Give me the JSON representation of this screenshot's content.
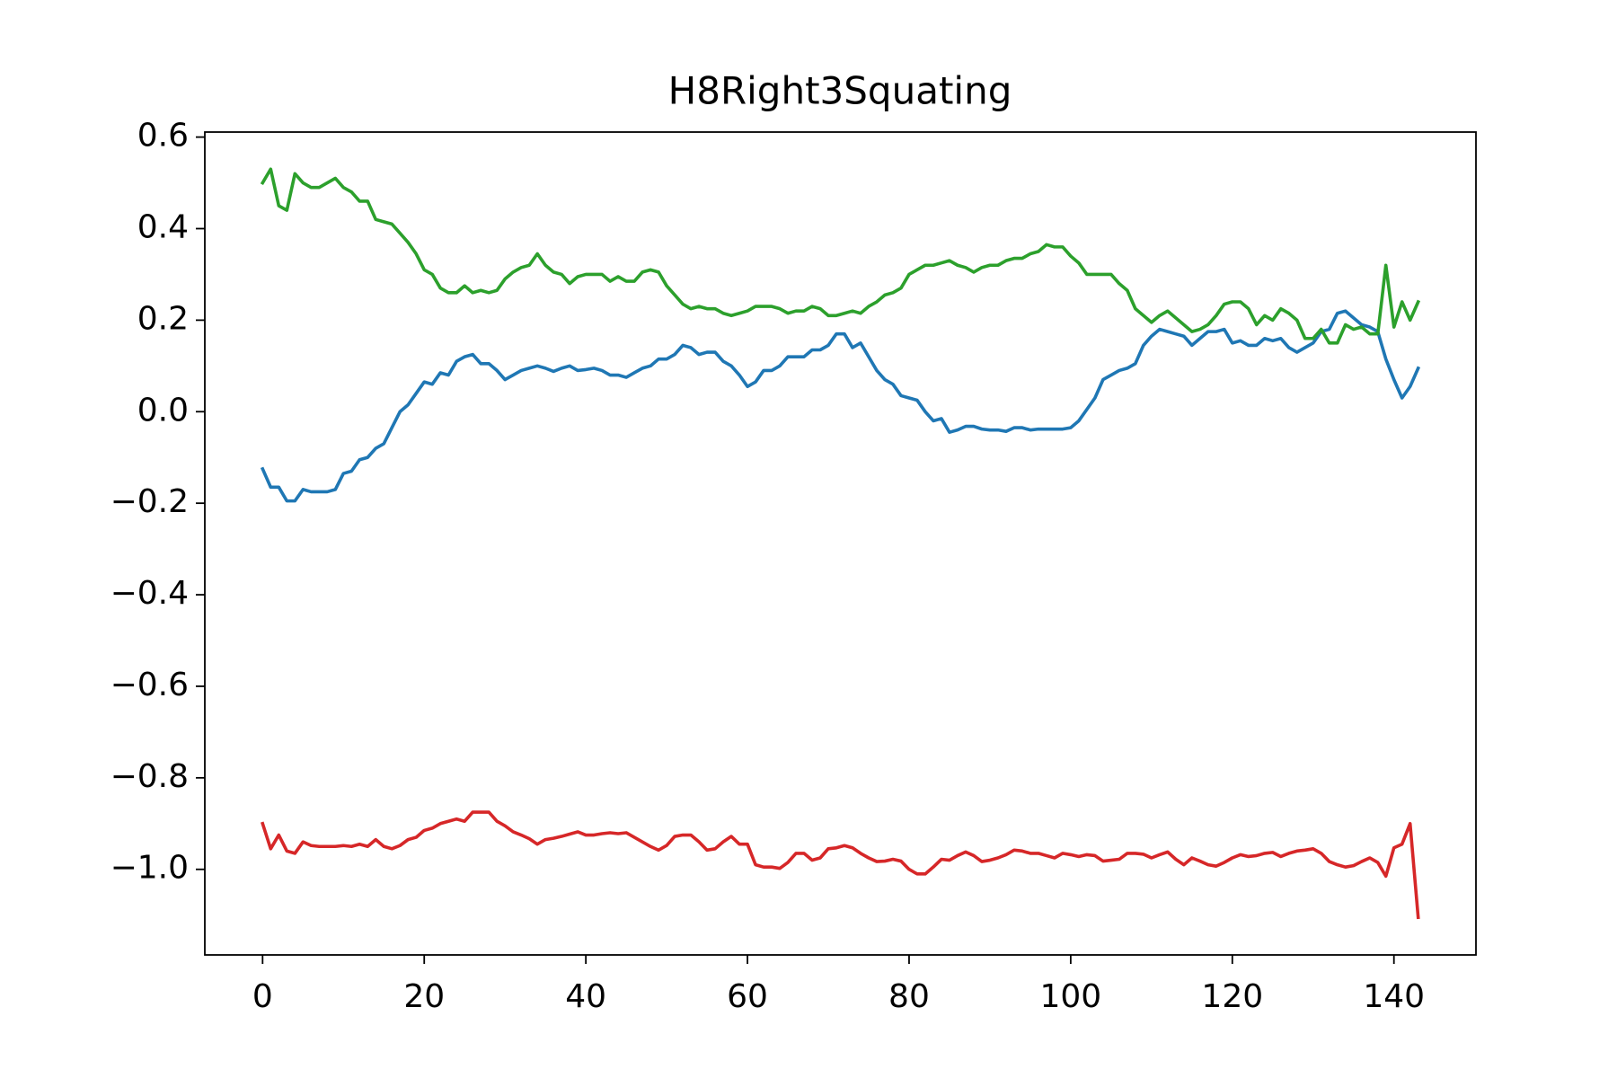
{
  "chart_data": {
    "type": "line",
    "title": "H8Right3Squating",
    "x": [
      0,
      1,
      2,
      3,
      4,
      5,
      6,
      7,
      8,
      9,
      10,
      11,
      12,
      13,
      14,
      15,
      16,
      17,
      18,
      19,
      20,
      21,
      22,
      23,
      24,
      25,
      26,
      27,
      28,
      29,
      30,
      31,
      32,
      33,
      34,
      35,
      36,
      37,
      38,
      39,
      40,
      41,
      42,
      43,
      44,
      45,
      46,
      47,
      48,
      49,
      50,
      51,
      52,
      53,
      54,
      55,
      56,
      57,
      58,
      59,
      60,
      61,
      62,
      63,
      64,
      65,
      66,
      67,
      68,
      69,
      70,
      71,
      72,
      73,
      74,
      75,
      76,
      77,
      78,
      79,
      80,
      81,
      82,
      83,
      84,
      85,
      86,
      87,
      88,
      89,
      90,
      91,
      92,
      93,
      94,
      95,
      96,
      97,
      98,
      99,
      100,
      101,
      102,
      103,
      104,
      105,
      106,
      107,
      108,
      109,
      110,
      111,
      112,
      113,
      114,
      115,
      116,
      117,
      118,
      119,
      120,
      121,
      122,
      123,
      124,
      125,
      126,
      127,
      128,
      129,
      130,
      131,
      132,
      133,
      134,
      135,
      136,
      137,
      138,
      139,
      140,
      141,
      142,
      143
    ],
    "series": [
      {
        "color": "#1f77b4",
        "values": [
          -0.125,
          -0.165,
          -0.165,
          -0.195,
          -0.195,
          -0.17,
          -0.175,
          -0.175,
          -0.175,
          -0.17,
          -0.135,
          -0.13,
          -0.105,
          -0.1,
          -0.08,
          -0.07,
          -0.035,
          0.0,
          0.015,
          0.04,
          0.065,
          0.06,
          0.085,
          0.08,
          0.11,
          0.12,
          0.125,
          0.105,
          0.105,
          0.09,
          0.07,
          0.08,
          0.09,
          0.095,
          0.1,
          0.095,
          0.088,
          0.095,
          0.1,
          0.09,
          0.092,
          0.095,
          0.09,
          0.08,
          0.08,
          0.075,
          0.085,
          0.095,
          0.1,
          0.115,
          0.115,
          0.125,
          0.145,
          0.14,
          0.125,
          0.13,
          0.13,
          0.11,
          0.1,
          0.08,
          0.055,
          0.065,
          0.09,
          0.09,
          0.1,
          0.12,
          0.12,
          0.12,
          0.135,
          0.135,
          0.145,
          0.17,
          0.17,
          0.14,
          0.15,
          0.12,
          0.09,
          0.07,
          0.06,
          0.035,
          0.03,
          0.025,
          0.0,
          -0.02,
          -0.015,
          -0.045,
          -0.04,
          -0.032,
          -0.032,
          -0.038,
          -0.04,
          -0.04,
          -0.043,
          -0.035,
          -0.035,
          -0.04,
          -0.038,
          -0.038,
          -0.038,
          -0.038,
          -0.035,
          -0.02,
          0.005,
          0.03,
          0.07,
          0.08,
          0.09,
          0.095,
          0.105,
          0.145,
          0.165,
          0.18,
          0.175,
          0.17,
          0.165,
          0.145,
          0.16,
          0.175,
          0.175,
          0.18,
          0.15,
          0.155,
          0.145,
          0.145,
          0.16,
          0.155,
          0.16,
          0.14,
          0.13,
          0.14,
          0.15,
          0.175,
          0.18,
          0.215,
          0.22,
          0.205,
          0.19,
          0.185,
          0.175,
          0.115,
          0.07,
          0.03,
          0.055,
          0.095
        ]
      },
      {
        "color": "#2ca02c",
        "values": [
          0.5,
          0.53,
          0.45,
          0.44,
          0.52,
          0.5,
          0.49,
          0.49,
          0.5,
          0.51,
          0.49,
          0.48,
          0.46,
          0.46,
          0.42,
          0.415,
          0.41,
          0.39,
          0.37,
          0.345,
          0.31,
          0.3,
          0.27,
          0.26,
          0.26,
          0.275,
          0.26,
          0.265,
          0.26,
          0.265,
          0.29,
          0.305,
          0.315,
          0.32,
          0.345,
          0.32,
          0.305,
          0.3,
          0.28,
          0.295,
          0.3,
          0.3,
          0.3,
          0.285,
          0.295,
          0.285,
          0.285,
          0.305,
          0.31,
          0.305,
          0.275,
          0.255,
          0.235,
          0.225,
          0.23,
          0.225,
          0.225,
          0.215,
          0.21,
          0.215,
          0.22,
          0.23,
          0.23,
          0.23,
          0.225,
          0.215,
          0.22,
          0.22,
          0.23,
          0.225,
          0.21,
          0.21,
          0.215,
          0.22,
          0.215,
          0.23,
          0.24,
          0.255,
          0.26,
          0.27,
          0.3,
          0.31,
          0.32,
          0.32,
          0.325,
          0.33,
          0.32,
          0.315,
          0.305,
          0.315,
          0.32,
          0.32,
          0.33,
          0.335,
          0.335,
          0.345,
          0.35,
          0.365,
          0.36,
          0.36,
          0.34,
          0.325,
          0.3,
          0.3,
          0.3,
          0.3,
          0.28,
          0.265,
          0.225,
          0.21,
          0.195,
          0.21,
          0.22,
          0.205,
          0.19,
          0.175,
          0.18,
          0.19,
          0.21,
          0.235,
          0.24,
          0.24,
          0.225,
          0.19,
          0.21,
          0.2,
          0.225,
          0.215,
          0.2,
          0.16,
          0.16,
          0.18,
          0.15,
          0.15,
          0.19,
          0.18,
          0.185,
          0.17,
          0.17,
          0.32,
          0.185,
          0.24,
          0.2,
          0.24
        ]
      },
      {
        "color": "#d62728",
        "values": [
          -0.9,
          -0.955,
          -0.925,
          -0.96,
          -0.965,
          -0.94,
          -0.948,
          -0.95,
          -0.95,
          -0.95,
          -0.948,
          -0.95,
          -0.945,
          -0.95,
          -0.935,
          -0.95,
          -0.955,
          -0.948,
          -0.935,
          -0.93,
          -0.915,
          -0.91,
          -0.9,
          -0.895,
          -0.89,
          -0.895,
          -0.875,
          -0.875,
          -0.875,
          -0.895,
          -0.905,
          -0.918,
          -0.925,
          -0.933,
          -0.945,
          -0.935,
          -0.932,
          -0.928,
          -0.923,
          -0.918,
          -0.925,
          -0.925,
          -0.922,
          -0.92,
          -0.922,
          -0.92,
          -0.93,
          -0.94,
          -0.95,
          -0.958,
          -0.948,
          -0.928,
          -0.925,
          -0.925,
          -0.94,
          -0.958,
          -0.955,
          -0.94,
          -0.928,
          -0.945,
          -0.945,
          -0.99,
          -0.995,
          -0.995,
          -0.998,
          -0.985,
          -0.965,
          -0.965,
          -0.98,
          -0.975,
          -0.955,
          -0.953,
          -0.948,
          -0.953,
          -0.965,
          -0.975,
          -0.983,
          -0.982,
          -0.978,
          -0.982,
          -1.0,
          -1.01,
          -1.01,
          -0.995,
          -0.978,
          -0.98,
          -0.97,
          -0.962,
          -0.97,
          -0.983,
          -0.98,
          -0.975,
          -0.968,
          -0.958,
          -0.96,
          -0.965,
          -0.965,
          -0.97,
          -0.975,
          -0.965,
          -0.968,
          -0.972,
          -0.968,
          -0.97,
          -0.982,
          -0.98,
          -0.978,
          -0.965,
          -0.965,
          -0.967,
          -0.975,
          -0.968,
          -0.962,
          -0.978,
          -0.99,
          -0.975,
          -0.982,
          -0.99,
          -0.993,
          -0.985,
          -0.975,
          -0.968,
          -0.972,
          -0.97,
          -0.965,
          -0.963,
          -0.972,
          -0.965,
          -0.96,
          -0.958,
          -0.955,
          -0.965,
          -0.983,
          -0.99,
          -0.995,
          -0.992,
          -0.983,
          -0.975,
          -0.985,
          -1.015,
          -0.953,
          -0.945,
          -0.9,
          -1.105
        ]
      }
    ],
    "xlim": [
      -7.15,
      150.15
    ],
    "ylim": [
      -1.187,
      0.611
    ],
    "xticks": [
      0,
      20,
      40,
      60,
      80,
      100,
      120,
      140
    ],
    "yticks": [
      {
        "value": -1.0,
        "label": "−1.0"
      },
      {
        "value": -0.8,
        "label": "−0.8"
      },
      {
        "value": -0.6,
        "label": "−0.6"
      },
      {
        "value": -0.4,
        "label": "−0.4"
      },
      {
        "value": -0.2,
        "label": "−0.2"
      },
      {
        "value": 0,
        "label": "0.0"
      },
      0.2,
      0.4,
      0.6
    ],
    "grid": false
  }
}
